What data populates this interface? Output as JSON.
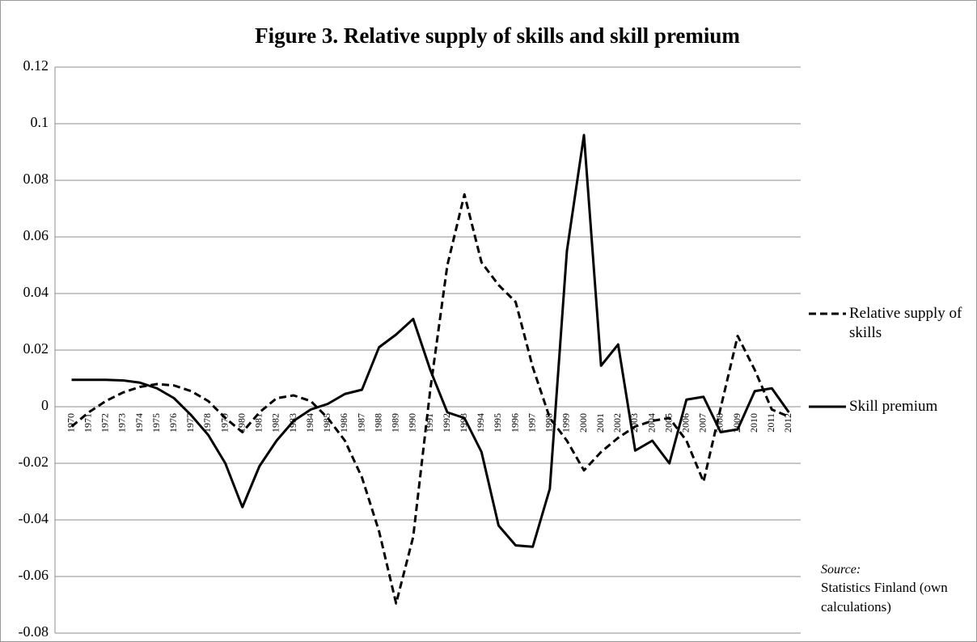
{
  "chart_data": {
    "type": "line",
    "title": "Figure 3. Relative supply of skills and skill premium",
    "categories": [
      "1970",
      "1971",
      "1972",
      "1973",
      "1974",
      "1975",
      "1976",
      "1977",
      "1978",
      "1979",
      "1980",
      "1981",
      "1982",
      "1983",
      "1984",
      "1985",
      "1986",
      "1987",
      "1988",
      "1989",
      "1990",
      "1991",
      "1992",
      "1993",
      "1994",
      "1995",
      "1996",
      "1997",
      "1998",
      "1999",
      "2000",
      "2001",
      "2002",
      "2003",
      "2004",
      "2005",
      "2006",
      "2007",
      "2008",
      "2009",
      "2010",
      "2011",
      "2012"
    ],
    "series": [
      {
        "name": "Relative supply of skills",
        "color": "#000000",
        "dash": true,
        "values": [
          -0.007,
          -0.002,
          0.002,
          0.005,
          0.007,
          0.008,
          0.0075,
          0.0055,
          0.002,
          -0.004,
          -0.009,
          -0.002,
          0.003,
          0.004,
          0.002,
          -0.004,
          -0.012,
          -0.025,
          -0.044,
          -0.0695,
          -0.046,
          0.006,
          0.05,
          0.075,
          0.051,
          0.043,
          0.037,
          0.014,
          -0.004,
          -0.012,
          -0.0225,
          -0.016,
          -0.011,
          -0.007,
          -0.005,
          -0.004,
          -0.012,
          -0.0265,
          -0.0005,
          0.025,
          0.013,
          -0.001,
          -0.0035
        ]
      },
      {
        "name": "Skill premium",
        "color": "#000000",
        "dash": false,
        "values": [
          0.0095,
          0.0095,
          0.0095,
          0.0093,
          0.0085,
          0.0065,
          0.003,
          -0.003,
          -0.01,
          -0.02,
          -0.0355,
          -0.021,
          -0.012,
          -0.005,
          -0.001,
          0.001,
          0.0045,
          0.006,
          0.021,
          0.0255,
          0.031,
          0.013,
          -0.002,
          -0.004,
          -0.016,
          -0.042,
          -0.049,
          -0.0495,
          -0.029,
          0.055,
          0.096,
          0.0145,
          0.022,
          -0.0155,
          -0.012,
          -0.02,
          0.0025,
          0.0035,
          -0.009,
          -0.008,
          0.0055,
          0.0065,
          -0.002
        ]
      }
    ],
    "ylim": [
      -0.08,
      0.12
    ],
    "yticks": [
      -0.08,
      -0.06,
      -0.04,
      -0.02,
      0,
      0.02,
      0.04,
      0.06,
      0.08,
      0.1,
      0.12
    ],
    "grid": true,
    "legend": "right",
    "source_label": "Source:",
    "source_text": "Statistics Finland (own calculations)"
  }
}
